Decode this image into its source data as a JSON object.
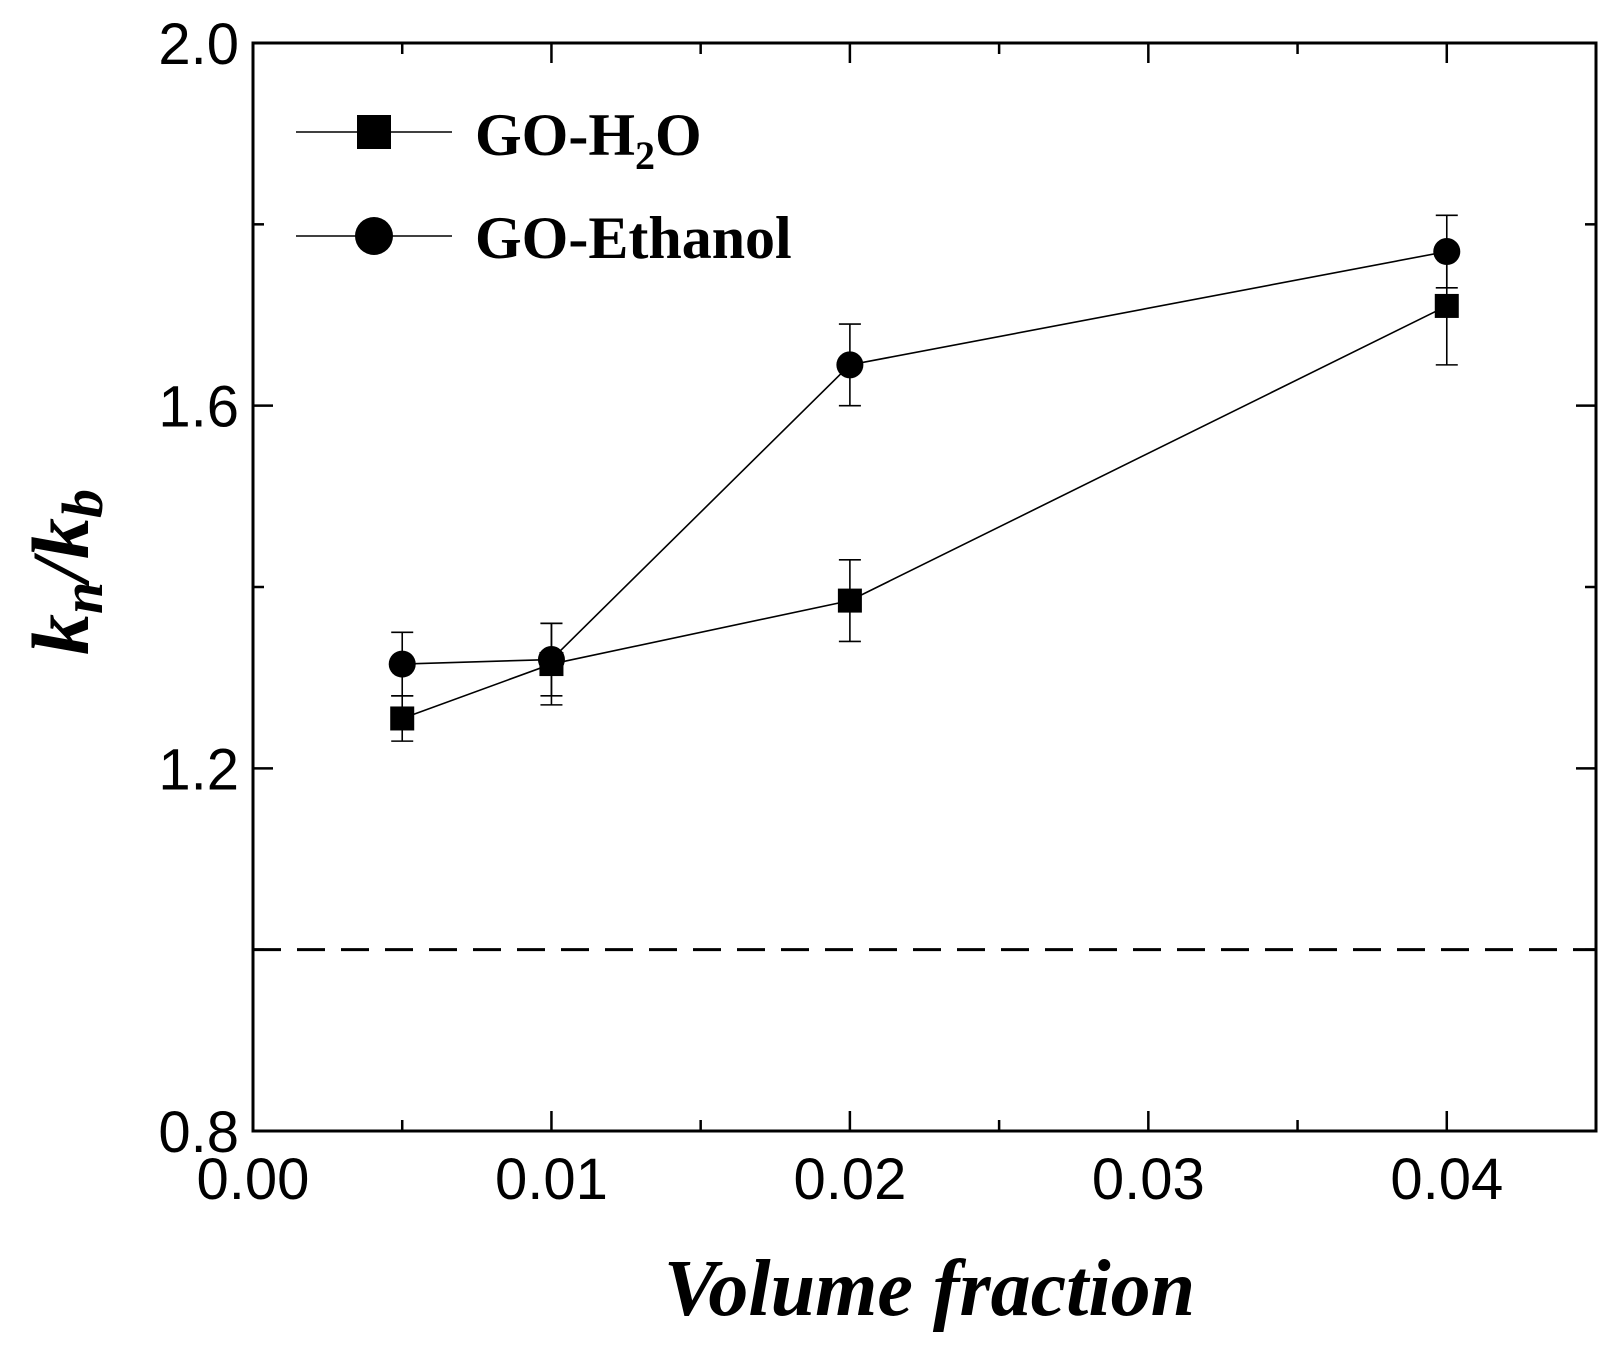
{
  "chart_data": {
    "type": "line",
    "title": "",
    "xlabel": "Volume fraction",
    "ylabel": {
      "k": "k",
      "n": "n",
      "slash": "/",
      "b": "b"
    },
    "xlim": [
      0.0,
      0.045
    ],
    "ylim": [
      0.8,
      2.0
    ],
    "x_ticks": [
      {
        "value": 0.0,
        "label": "0.00"
      },
      {
        "value": 0.01,
        "label": "0.01"
      },
      {
        "value": 0.02,
        "label": "0.02"
      },
      {
        "value": 0.03,
        "label": "0.03"
      },
      {
        "value": 0.04,
        "label": "0.04"
      }
    ],
    "x_minor_ticks": [
      0.005,
      0.015,
      0.025,
      0.035
    ],
    "y_ticks": [
      {
        "value": 0.8,
        "label": "0.8"
      },
      {
        "value": 1.2,
        "label": "1.2"
      },
      {
        "value": 1.6,
        "label": "1.6"
      },
      {
        "value": 2.0,
        "label": "2.0"
      }
    ],
    "y_minor_ticks": [
      1.0,
      1.4,
      1.8
    ],
    "reference_line": {
      "y": 1.0,
      "style": "dashed"
    },
    "legend_position": "top-left",
    "series": [
      {
        "name": "GO-H2O",
        "legend_label": {
          "main": "GO-H",
          "sub": "2",
          "tail": "O"
        },
        "marker": "square",
        "x": [
          0.005,
          0.01,
          0.02,
          0.04
        ],
        "values": [
          1.255,
          1.315,
          1.385,
          1.71
        ],
        "errors": [
          0.025,
          0.045,
          0.045,
          0.065
        ]
      },
      {
        "name": "GO-Ethanol",
        "legend_label": {
          "main": "GO-Ethanol",
          "sub": "",
          "tail": ""
        },
        "marker": "circle",
        "x": [
          0.005,
          0.01,
          0.02,
          0.04
        ],
        "values": [
          1.315,
          1.32,
          1.645,
          1.77
        ],
        "errors": [
          0.035,
          0.04,
          0.045,
          0.04
        ]
      }
    ]
  }
}
